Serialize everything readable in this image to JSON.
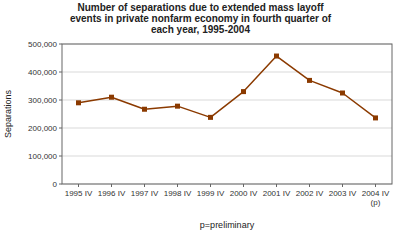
{
  "chart_data": {
    "type": "line",
    "title": "Number of separations due to extended mass layoff\nevents in private nonfarm economy in fourth quarter of\neach year, 1995-2004",
    "xlabel": "p=preliminary",
    "ylabel": "Separations",
    "categories": [
      "1995 IV",
      "1996 IV",
      "1997 IV",
      "1998 IV",
      "1999 IV",
      "2000 IV",
      "2001 IV",
      "2002 IV",
      "2003 IV",
      "2004 IV\n(p)"
    ],
    "values": [
      290000,
      310000,
      267000,
      278000,
      238000,
      330000,
      457000,
      370000,
      325000,
      236000
    ],
    "color": "#8B3A00",
    "marker": "square",
    "ylim": [
      0,
      500000
    ],
    "yticks": [
      0,
      {
        "value": 100000,
        "label": "100,000"
      },
      {
        "value": 200000,
        "label": "200,000"
      },
      {
        "value": 300000,
        "label": "300,000"
      },
      {
        "value": 400000,
        "label": "400,000"
      },
      {
        "value": 500000,
        "label": "500,000"
      }
    ],
    "grid": true
  }
}
